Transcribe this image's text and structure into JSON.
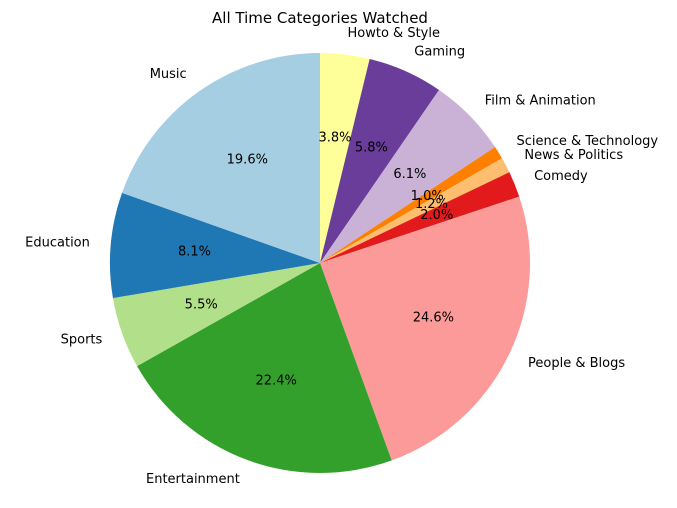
{
  "chart_data": {
    "type": "pie",
    "title": "All Time Categories Watched",
    "start_angle_deg": 90,
    "direction": "clockwise",
    "slices": [
      {
        "label": "Howto & Style",
        "value": 3.8,
        "pct_label": "3.8%",
        "color": "#ffff99"
      },
      {
        "label": "Gaming",
        "value": 5.8,
        "pct_label": "5.8%",
        "color": "#6a3d9a"
      },
      {
        "label": "Film & Animation",
        "value": 6.1,
        "pct_label": "6.1%",
        "color": "#cab2d6"
      },
      {
        "label": "Science & Technology",
        "value": 1.0,
        "pct_label": "1.0%",
        "color": "#ff7f00"
      },
      {
        "label": "News & Politics",
        "value": 1.2,
        "pct_label": "1.2%",
        "color": "#fdbf6f"
      },
      {
        "label": "Comedy",
        "value": 2.0,
        "pct_label": "2.0%",
        "color": "#e31a1c"
      },
      {
        "label": "People & Blogs",
        "value": 24.6,
        "pct_label": "24.6%",
        "color": "#fb9a99"
      },
      {
        "label": "Entertainment",
        "value": 22.4,
        "pct_label": "22.4%",
        "color": "#33a02c"
      },
      {
        "label": "Sports",
        "value": 5.5,
        "pct_label": "5.5%",
        "color": "#b2df8a"
      },
      {
        "label": "Education",
        "value": 8.1,
        "pct_label": "8.1%",
        "color": "#1f78b4"
      },
      {
        "label": "Music",
        "value": 19.6,
        "pct_label": "19.6%",
        "color": "#a6cee3"
      }
    ]
  }
}
